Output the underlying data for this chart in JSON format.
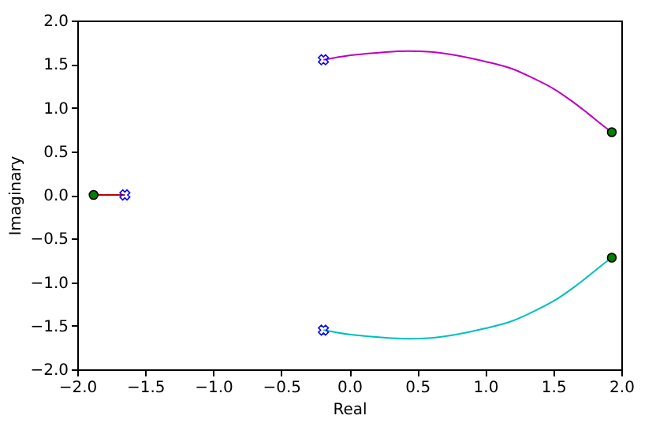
{
  "chart_data": {
    "type": "line",
    "xlabel": "Real",
    "ylabel": "Imaginary",
    "xlim": [
      -2.0,
      2.0
    ],
    "ylim": [
      -2.0,
      2.0
    ],
    "xticks": [
      {
        "value": -2.0,
        "label": "−2.0"
      },
      {
        "value": -1.5,
        "label": "−1.5"
      },
      {
        "value": -1.0,
        "label": "−1.0"
      },
      {
        "value": -0.5,
        "label": "−0.5"
      },
      {
        "value": 0.0,
        "label": "0.0"
      },
      {
        "value": 0.5,
        "label": "0.5"
      },
      {
        "value": 1.0,
        "label": "1.0"
      },
      {
        "value": 1.5,
        "label": "1.5"
      },
      {
        "value": 2.0,
        "label": "2.0"
      }
    ],
    "yticks": [
      {
        "value": -2.0,
        "label": "−2.0"
      },
      {
        "value": -1.5,
        "label": "−1.5"
      },
      {
        "value": -1.0,
        "label": "−1.0"
      },
      {
        "value": -0.5,
        "label": "−0.5"
      },
      {
        "value": 0.0,
        "label": "0.0"
      },
      {
        "value": 0.5,
        "label": "0.5"
      },
      {
        "value": 1.0,
        "label": "1.0"
      },
      {
        "value": 1.5,
        "label": "1.5"
      },
      {
        "value": 2.0,
        "label": "2.0"
      }
    ],
    "series": [
      {
        "color": "#bf00bf",
        "line_style": "solid",
        "x": [
          -0.19,
          0.0,
          0.2,
          0.42,
          0.6,
          0.79,
          1.0,
          1.19,
          1.35,
          1.51,
          1.65,
          1.75,
          1.87,
          1.93
        ],
        "values": [
          1.55,
          1.6,
          1.63,
          1.65,
          1.64,
          1.6,
          1.53,
          1.45,
          1.34,
          1.21,
          1.06,
          0.94,
          0.79,
          0.72
        ]
      },
      {
        "color": "#00bfbf",
        "line_style": "solid",
        "x": [
          -0.19,
          0.0,
          0.2,
          0.42,
          0.6,
          0.79,
          1.0,
          1.19,
          1.35,
          1.51,
          1.65,
          1.75,
          1.87,
          1.93
        ],
        "values": [
          -1.55,
          -1.6,
          -1.63,
          -1.65,
          -1.64,
          -1.6,
          -1.53,
          -1.45,
          -1.34,
          -1.21,
          -1.06,
          -0.94,
          -0.79,
          -0.72
        ]
      },
      {
        "color": "#bf0000",
        "line_style": "solid",
        "x": [
          -1.65,
          -1.88
        ],
        "values": [
          0.0,
          0.0
        ]
      },
      {
        "type": "scatter",
        "color": "#0000ff",
        "marker": "cross",
        "x": [
          -1.65,
          -0.19,
          -0.19
        ],
        "values": [
          0.0,
          1.55,
          -1.55
        ]
      },
      {
        "type": "scatter",
        "color": "#007f00",
        "marker": "circle",
        "x": [
          -1.88,
          1.93,
          1.93
        ],
        "values": [
          0.0,
          0.72,
          -0.72
        ]
      }
    ]
  }
}
